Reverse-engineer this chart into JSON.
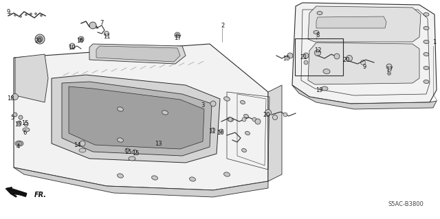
{
  "background_color": "#ffffff",
  "diagram_code": "S5AC-B3800",
  "line_color": "#2a2a2a",
  "light_gray": "#c8c8c8",
  "mid_gray": "#a0a0a0",
  "panel_fill": "#e8e8e8",
  "panel_fill2": "#f2f2f2"
}
